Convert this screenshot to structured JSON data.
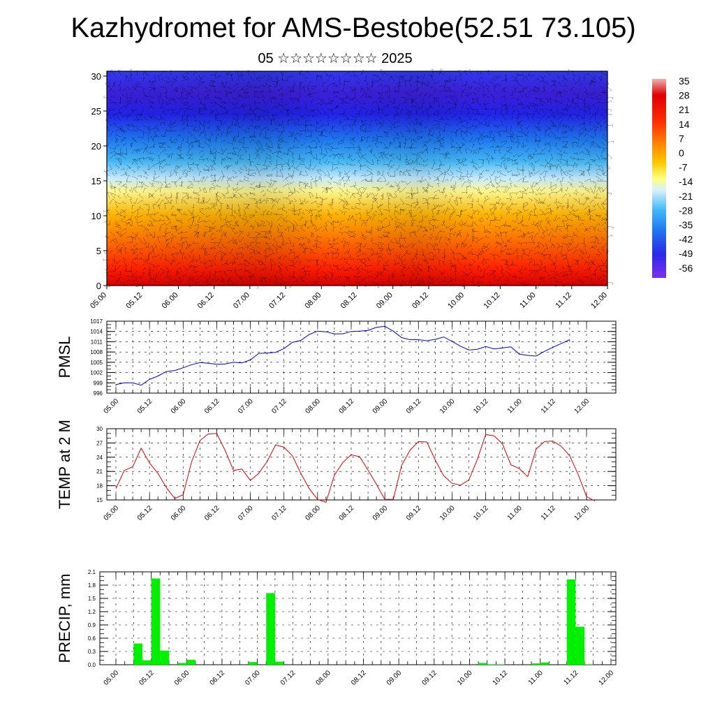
{
  "title": "Kazhydromet for AMS-Bestobe(52.51 73.105)",
  "subtitle": "05 ☆☆☆☆☆☆☆☆ 2025",
  "colors": {
    "pmsl_line": "#0000dd",
    "temp_line": "#e00000",
    "precip_bar": "#00f000",
    "grid": "#000000"
  },
  "chart_data": [
    {
      "type": "heatmap",
      "name": "vertical-section",
      "x_ticks": [
        "05.00",
        "05.12",
        "06.00",
        "06.12",
        "07.00",
        "07.12",
        "08.00",
        "08.12",
        "09.00",
        "09.12",
        "10.00",
        "10.12",
        "11.00",
        "11.12",
        "12.00"
      ],
      "y_ticks": [
        "0",
        "5",
        "10",
        "15",
        "20",
        "25",
        "30"
      ],
      "ylim": [
        0,
        30.7
      ],
      "colorbar": {
        "labels": [
          "35",
          "28",
          "21",
          "14",
          "7",
          "0",
          "-7",
          "-14",
          "-21",
          "-28",
          "-35",
          "-42",
          "-49",
          "-56"
        ],
        "range": [
          -56,
          35
        ]
      },
      "approx_temperature_profile": {
        "heights": [
          0,
          5,
          10,
          15,
          17,
          20,
          25,
          30
        ],
        "values": [
          25,
          18,
          8,
          -6,
          -20,
          -40,
          -55,
          -50
        ]
      },
      "wind_barbs": true
    },
    {
      "type": "line",
      "name": "pmsl",
      "ylabel": "PMSL",
      "ylim": [
        996,
        1017
      ],
      "y_ticks": [
        "1017",
        "1014",
        "1011",
        "1008",
        "1005",
        "1002",
        "999",
        "996"
      ],
      "x_ticks": [
        "05.00",
        "05.12",
        "06.00",
        "06.12",
        "07.00",
        "07.12",
        "08.00",
        "08.12",
        "09.00",
        "09.12",
        "10.00",
        "10.12",
        "11.00",
        "11.12",
        "12.00"
      ],
      "x_step_hours": 3,
      "values": [
        998.5,
        999,
        999,
        998.3,
        1000,
        1001,
        1002.3,
        1002.6,
        1003.4,
        1004.3,
        1004.9,
        1004.7,
        1004.4,
        1004.5,
        1005,
        1004.8,
        1005.7,
        1007.6,
        1007.7,
        1007.9,
        1009,
        1010.8,
        1011.4,
        1013.1,
        1014.1,
        1013.9,
        1013.3,
        1013.3,
        1014,
        1014.1,
        1014.3,
        1015.2,
        1015.5,
        1014.1,
        1012.2,
        1011.6,
        1011.6,
        1011.3,
        1011.7,
        1012.4,
        1011.1,
        1009.7,
        1008.6,
        1008.8,
        1009.6,
        1008.9,
        1009.2,
        1009.5,
        1007.4,
        1007,
        1006.8,
        1008.2,
        1009.4,
        1010.5,
        1011.6
      ]
    },
    {
      "type": "line",
      "name": "temp-2m",
      "ylabel": "TEMP at 2 M",
      "ylim": [
        15,
        30
      ],
      "y_ticks": [
        "30",
        "27",
        "24",
        "21",
        "18",
        "15"
      ],
      "x_ticks": [
        "05.00",
        "05.12",
        "06.00",
        "06.12",
        "07.00",
        "07.12",
        "08.00",
        "08.12",
        "09.00",
        "09.12",
        "10.00",
        "10.12",
        "11.00",
        "11.12",
        "12.00"
      ],
      "x_step_hours": 3,
      "values": [
        17.4,
        21.2,
        22,
        25.9,
        22.8,
        20.6,
        17.6,
        15.3,
        16.1,
        23,
        27.5,
        28.9,
        29,
        25.4,
        21.2,
        21.5,
        19.1,
        20.6,
        23.1,
        26.6,
        26.1,
        24.3,
        20.6,
        17.4,
        15.1,
        14.5,
        20.2,
        22.9,
        24.5,
        24.1,
        21.3,
        18.3,
        15.1,
        15.1,
        22.3,
        25.5,
        27.3,
        27.2,
        23.4,
        20.1,
        18.5,
        18.1,
        19.2,
        23.5,
        28.8,
        28.5,
        26.8,
        22.4,
        21.6,
        19.9,
        25.7,
        27.3,
        27.4,
        26.3,
        24.3,
        20.4,
        15.7,
        14.8
      ]
    },
    {
      "type": "bar",
      "name": "precip",
      "ylabel": "PRECIP, mm",
      "ylim": [
        0,
        2.1
      ],
      "y_ticks": [
        "2.1",
        "1.8",
        "1.5",
        "1.2",
        "0.9",
        "0.6",
        "0.3",
        "0.0"
      ],
      "x_ticks": [
        "05.00",
        "05.12",
        "06.00",
        "06.12",
        "07.00",
        "07.12",
        "08.00",
        "08.12",
        "09.00",
        "09.12",
        "10.00",
        "10.12",
        "11.00",
        "11.12",
        "12.00"
      ],
      "x_step_hours": 3,
      "values": [
        0,
        0,
        0.48,
        0.1,
        1.95,
        0.32,
        0,
        0.04,
        0.11,
        0,
        0,
        0,
        0,
        0,
        0,
        0.06,
        0,
        1.62,
        0.07,
        0,
        0,
        0,
        0,
        0,
        0,
        0,
        0,
        0,
        0,
        0,
        0,
        0,
        0,
        0,
        0,
        0,
        0,
        0,
        0,
        0,
        0,
        0.04,
        0.01,
        0.01,
        0,
        0,
        0,
        0.03,
        0.05,
        0,
        0,
        1.93,
        0.86,
        0.01,
        0,
        0
      ]
    }
  ]
}
